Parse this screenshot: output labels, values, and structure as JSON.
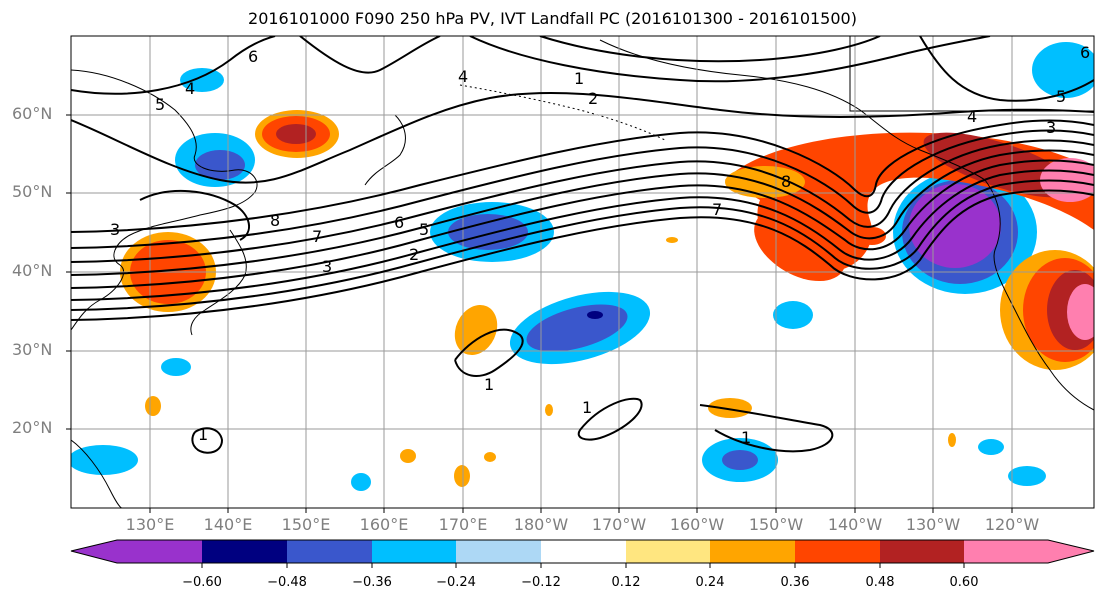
{
  "title": "2016101000 F090 250 hPa PV, IVT Landfall PC (2016101300 - 2016101500)",
  "latitude_labels": [
    "60°N",
    "50°N",
    "40°N",
    "30°N",
    "20°N"
  ],
  "longitude_labels": [
    "130°E",
    "140°E",
    "150°E",
    "160°E",
    "170°E",
    "180°W",
    "170°W",
    "160°W",
    "150°W",
    "140°W",
    "130°W",
    "120°W"
  ],
  "contour_labels": [
    "1",
    "2",
    "3",
    "4",
    "5",
    "6",
    "7",
    "8",
    "1",
    "1",
    "1",
    "2",
    "3",
    "4",
    "5",
    "6",
    "7",
    "8",
    "3",
    "4",
    "5",
    "6",
    "1"
  ],
  "colorbar": {
    "ticks": [
      "−0.60",
      "−0.48",
      "−0.36",
      "−0.24",
      "−0.12",
      "0.12",
      "0.24",
      "0.36",
      "0.48",
      "0.60"
    ],
    "colors": [
      "#9932CC",
      "#000080",
      "#3A57CC",
      "#00BFFF",
      "#ADD8F5",
      "#FFFFFF",
      "#FFE680",
      "#FFA500",
      "#FF4500",
      "#B22222",
      "#FF7FAF"
    ]
  }
}
